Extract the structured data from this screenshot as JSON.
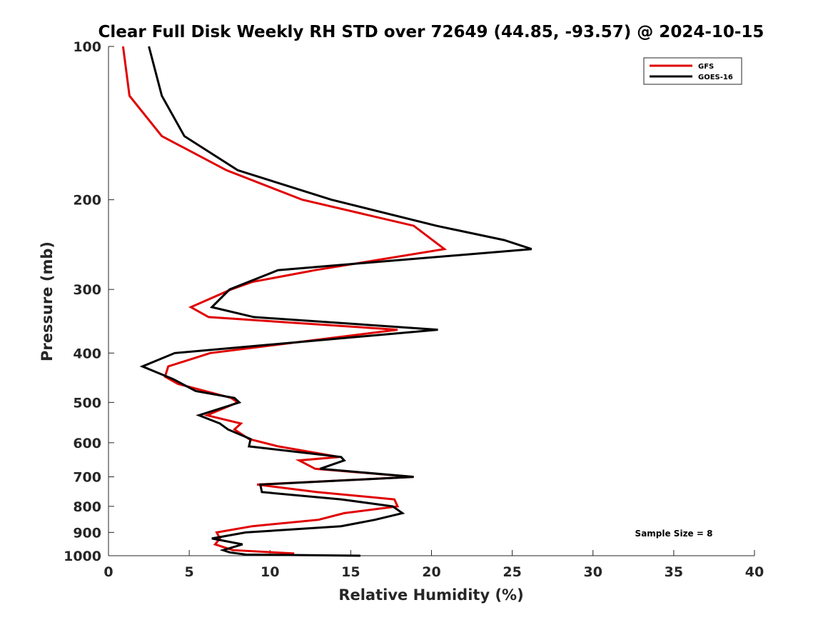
{
  "chart_data": {
    "type": "line",
    "title": "Clear Full Disk Weekly RH STD over 72649 (44.85, -93.57) @ 2024-10-15",
    "xlabel": "Relative Humidity (%)",
    "ylabel": "Pressure (mb)",
    "xlim": [
      0,
      40
    ],
    "ylim": [
      100,
      1000
    ],
    "y_scale": "log",
    "y_reversed": true,
    "grid": false,
    "legend_position": "top-right",
    "annotation": "Sample Size = 8",
    "x_ticks": [
      "0",
      "5",
      "10",
      "15",
      "20",
      "25",
      "30",
      "35",
      "40"
    ],
    "y_ticks": [
      "100",
      "200",
      "300",
      "400",
      "500",
      "600",
      "700",
      "800",
      "900",
      "1000"
    ],
    "series": [
      {
        "name": "GFS",
        "color": "#e00000",
        "points": [
          [
            0.9,
            100
          ],
          [
            1.3,
            125
          ],
          [
            3.3,
            150
          ],
          [
            7.3,
            175
          ],
          [
            12,
            200
          ],
          [
            18.9,
            225
          ],
          [
            20.8,
            250
          ],
          [
            12.8,
            275
          ],
          [
            8.9,
            290
          ],
          [
            7.6,
            300
          ],
          [
            5.1,
            325
          ],
          [
            6.2,
            340
          ],
          [
            17.9,
            360
          ],
          [
            6.3,
            400
          ],
          [
            3.7,
            425
          ],
          [
            3.5,
            445
          ],
          [
            4.3,
            460
          ],
          [
            7.6,
            490
          ],
          [
            8,
            500
          ],
          [
            6.1,
            530
          ],
          [
            8.2,
            550
          ],
          [
            7.8,
            565
          ],
          [
            8.7,
            590
          ],
          [
            10.5,
            610
          ],
          [
            14.3,
            640
          ],
          [
            11.8,
            650
          ],
          [
            12.8,
            675
          ],
          [
            18.9,
            700
          ],
          [
            9.2,
            725
          ],
          [
            12.9,
            750
          ],
          [
            17.7,
            775
          ],
          [
            17.9,
            800
          ],
          [
            14.6,
            825
          ],
          [
            13,
            850
          ],
          [
            8.9,
            875
          ],
          [
            6.7,
            900
          ],
          [
            6.9,
            925
          ],
          [
            6.6,
            950
          ],
          [
            7.7,
            975
          ],
          [
            11.5,
            990
          ]
        ]
      },
      {
        "name": "GOES-16",
        "color": "#000000",
        "points": [
          [
            2.5,
            100
          ],
          [
            3.3,
            125
          ],
          [
            4.7,
            150
          ],
          [
            8,
            175
          ],
          [
            13.8,
            200
          ],
          [
            20.3,
            225
          ],
          [
            24.5,
            240
          ],
          [
            26.2,
            250
          ],
          [
            10.5,
            275
          ],
          [
            7.5,
            300
          ],
          [
            6.4,
            325
          ],
          [
            9,
            340
          ],
          [
            20.4,
            360
          ],
          [
            4.1,
            400
          ],
          [
            2.1,
            425
          ],
          [
            4,
            450
          ],
          [
            5.4,
            475
          ],
          [
            7.8,
            490
          ],
          [
            8.1,
            500
          ],
          [
            5.6,
            530
          ],
          [
            6.9,
            550
          ],
          [
            7.4,
            565
          ],
          [
            8.8,
            590
          ],
          [
            8.7,
            610
          ],
          [
            14.4,
            640
          ],
          [
            14.6,
            650
          ],
          [
            13.1,
            675
          ],
          [
            18.9,
            700
          ],
          [
            9.4,
            725
          ],
          [
            9.5,
            750
          ],
          [
            14.4,
            775
          ],
          [
            17.6,
            800
          ],
          [
            18.2,
            825
          ],
          [
            16.5,
            850
          ],
          [
            14.4,
            875
          ],
          [
            8.5,
            900
          ],
          [
            6.4,
            925
          ],
          [
            8.3,
            950
          ],
          [
            7.1,
            975
          ],
          [
            7.5,
            985
          ],
          [
            8.5,
            995
          ],
          [
            15.6,
            1000
          ]
        ]
      }
    ]
  }
}
